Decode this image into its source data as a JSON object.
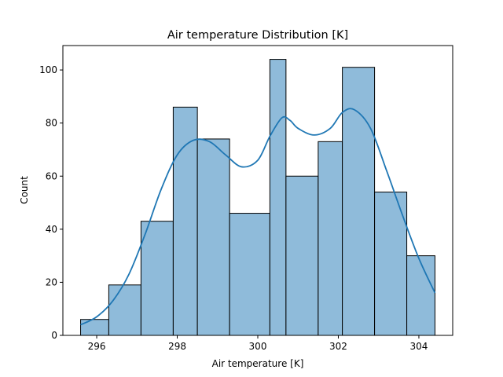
{
  "chart_data": {
    "type": "bar",
    "title": "Air temperature Distribution [K]",
    "xlabel": "Air temperature [K]",
    "ylabel": "Count",
    "xlim": [
      295.16,
      304.84
    ],
    "ylim": [
      0,
      109.2
    ],
    "xticks": [
      296,
      298,
      300,
      302,
      304
    ],
    "yticks": [
      0,
      20,
      40,
      60,
      80,
      100
    ],
    "grid": false,
    "bins": [
      {
        "x0": 295.6,
        "x1": 296.3,
        "count": 6
      },
      {
        "x0": 296.3,
        "x1": 297.1,
        "count": 19
      },
      {
        "x0": 297.1,
        "x1": 297.9,
        "count": 43
      },
      {
        "x0": 297.9,
        "x1": 298.5,
        "count": 86
      },
      {
        "x0": 298.5,
        "x1": 299.3,
        "count": 74
      },
      {
        "x0": 299.3,
        "x1": 300.3,
        "count": 46
      },
      {
        "x0": 300.3,
        "x1": 300.7,
        "count": 104
      },
      {
        "x0": 300.7,
        "x1": 301.5,
        "count": 60
      },
      {
        "x0": 301.5,
        "x1": 302.1,
        "count": 73
      },
      {
        "x0": 302.1,
        "x1": 302.9,
        "count": 101
      },
      {
        "x0": 302.9,
        "x1": 303.7,
        "count": 54
      },
      {
        "x0": 303.7,
        "x1": 304.4,
        "count": 30
      }
    ],
    "kde": {
      "x": [
        295.6,
        296.0,
        296.4,
        296.8,
        297.2,
        297.6,
        298.0,
        298.4,
        298.8,
        299.2,
        299.6,
        300.0,
        300.3,
        300.6,
        300.8,
        301.0,
        301.4,
        301.8,
        302.1,
        302.4,
        302.8,
        303.2,
        303.6,
        304.0,
        304.4
      ],
      "y": [
        4,
        7,
        13,
        23,
        38,
        55,
        68,
        73.5,
        73,
        68,
        63.5,
        66,
        75,
        82,
        81,
        78,
        75.5,
        78,
        84,
        85,
        78,
        62,
        45,
        29,
        16
      ]
    },
    "colors": {
      "bar_fill": "#8fbbda",
      "bar_edge": "#000000",
      "kde_line": "#1f77b4"
    }
  }
}
